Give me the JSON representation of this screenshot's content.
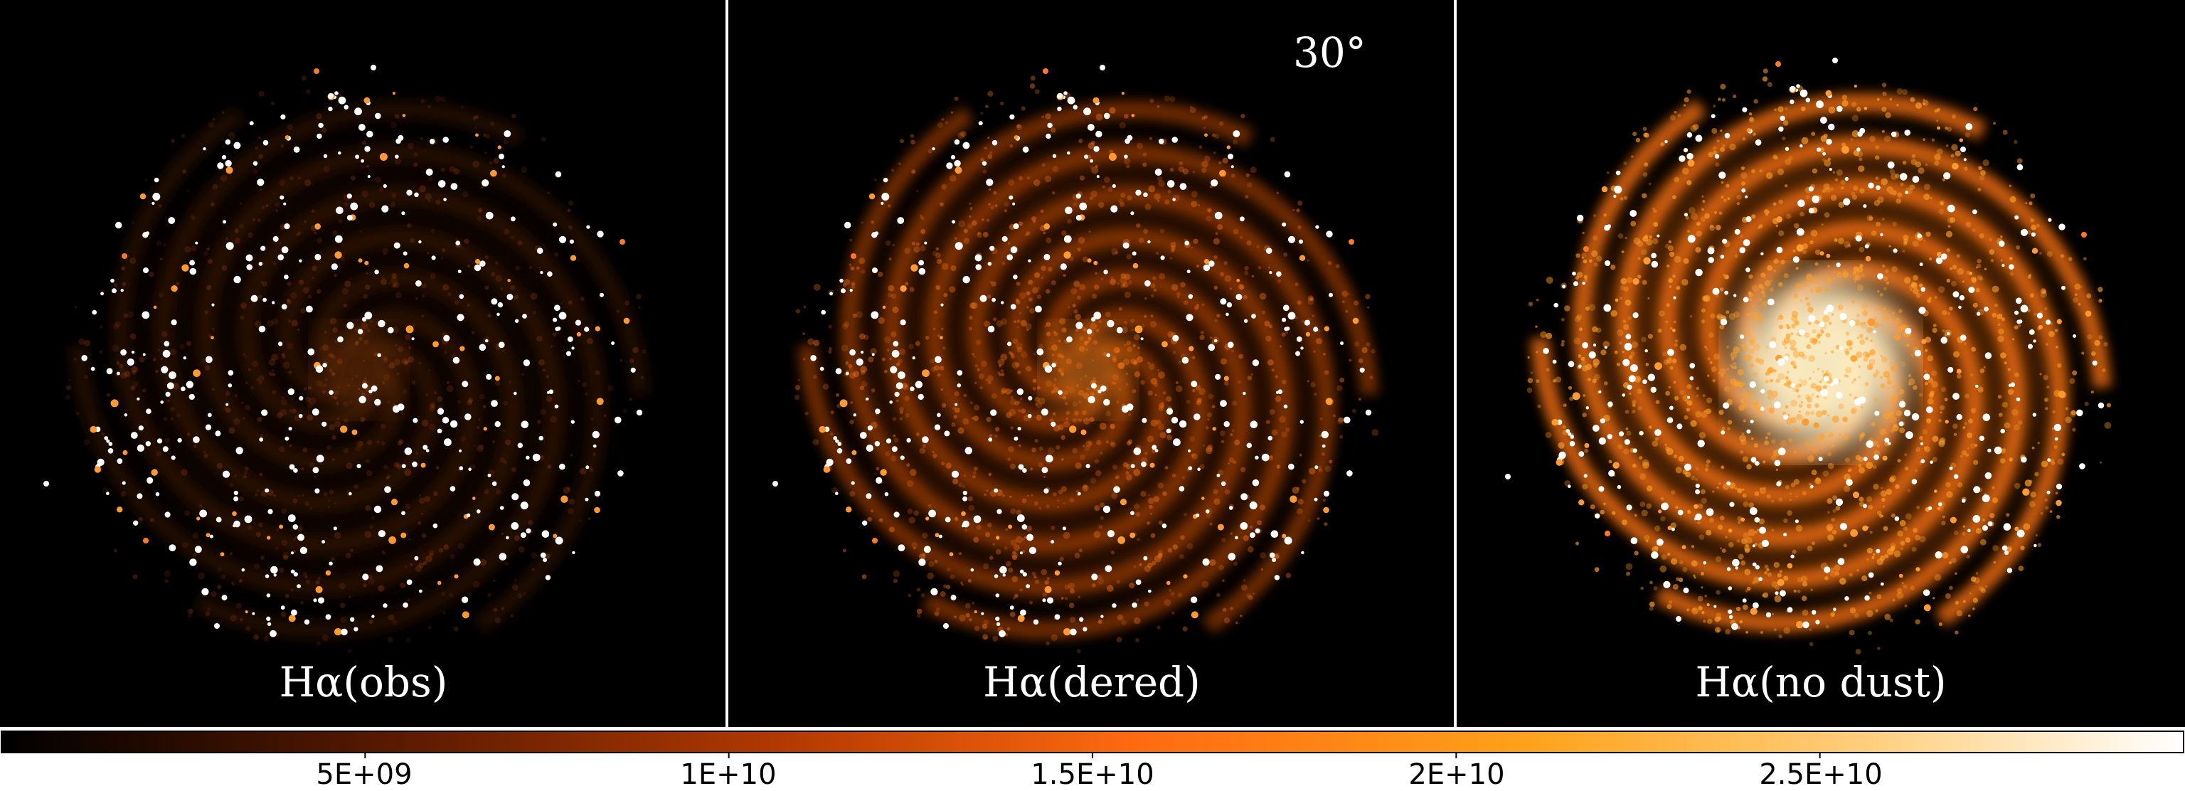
{
  "panels": [
    {
      "label": "Hα(obs)"
    },
    {
      "label": "Hα(dered)"
    },
    {
      "label": "Hα(no dust)"
    }
  ],
  "angle": "30°",
  "colorbar": {
    "ticks": [
      {
        "value": 5000000000.0,
        "label": "5E+09"
      },
      {
        "value": 10000000000.0,
        "label": "1E+10"
      },
      {
        "value": 15000000000.0,
        "label": "1.5E+10"
      },
      {
        "value": 20000000000.0,
        "label": "2E+10"
      },
      {
        "value": 25000000000.0,
        "label": "2.5E+10"
      }
    ],
    "range": [
      0,
      30000000000.0
    ],
    "colormap": [
      "#000000",
      "#5a1a00",
      "#b33a00",
      "#ff6a10",
      "#ffa21a",
      "#ffd080",
      "#ffffff"
    ]
  },
  "colors": {
    "background": "#000000",
    "frame": "#ffffff"
  }
}
